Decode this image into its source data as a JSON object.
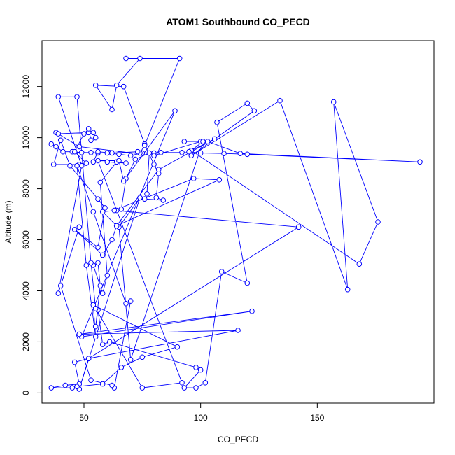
{
  "chart_data": {
    "type": "line",
    "title": "ATOM1 Southbound CO_PECD",
    "xlabel": "CO_PECD",
    "ylabel": "Altitude (m)",
    "xlim": [
      32,
      200
    ],
    "ylim": [
      -400,
      13800
    ],
    "x_ticks": [
      50,
      100,
      150
    ],
    "y_ticks": [
      0,
      2000,
      4000,
      6000,
      8000,
      10000,
      12000
    ],
    "grid": false,
    "legend": "none",
    "color": "#0000ff",
    "series": [
      {
        "points": [
          [
            36,
            9750
          ],
          [
            38,
            9650
          ],
          [
            41,
            9450
          ],
          [
            45,
            9450
          ],
          [
            49,
            9420
          ],
          [
            53,
            9420
          ],
          [
            56,
            9400
          ],
          [
            60,
            9400
          ],
          [
            65,
            9350
          ],
          [
            70,
            9300
          ],
          [
            75,
            9400
          ],
          [
            80,
            9400
          ],
          [
            83,
            9420
          ],
          [
            92,
            9420
          ],
          [
            100,
            9400
          ],
          [
            110,
            9380
          ],
          [
            120,
            9350
          ],
          [
            194,
            9050
          ],
          [
            117,
            9380
          ],
          [
            103,
            9850
          ],
          [
            93,
            9850
          ],
          [
            100,
            9850
          ],
          [
            80,
            9300
          ],
          [
            48,
            9650
          ],
          [
            38,
            10200
          ],
          [
            39,
            10150
          ],
          [
            52,
            10200
          ],
          [
            54,
            10200
          ],
          [
            55,
            10000
          ],
          [
            53,
            9900
          ],
          [
            52,
            10350
          ],
          [
            50,
            10150
          ],
          [
            46,
            9450
          ],
          [
            51,
            9000
          ],
          [
            48,
            8950
          ],
          [
            37,
            8950
          ],
          [
            40,
            9900
          ],
          [
            44,
            8900
          ],
          [
            56,
            7600
          ],
          [
            59,
            7250
          ],
          [
            56,
            5700
          ],
          [
            46,
            6400
          ],
          [
            58,
            5400
          ],
          [
            62,
            6000
          ],
          [
            64,
            6550
          ],
          [
            58,
            7100
          ],
          [
            64,
            7150
          ],
          [
            66,
            7200
          ],
          [
            68,
            8400
          ],
          [
            72,
            9150
          ],
          [
            78,
            9400
          ],
          [
            77,
            7800
          ],
          [
            76,
            7600
          ],
          [
            84,
            7550
          ],
          [
            81,
            7650
          ],
          [
            82,
            8600
          ],
          [
            80,
            8950
          ],
          [
            76,
            9750
          ],
          [
            67,
            12000
          ],
          [
            55,
            12050
          ],
          [
            62,
            11100
          ],
          [
            64,
            12050
          ],
          [
            74,
            13100
          ],
          [
            68,
            13100
          ],
          [
            91,
            13100
          ],
          [
            76,
            9700
          ],
          [
            74,
            9400
          ],
          [
            73,
            9450
          ],
          [
            62,
            9400
          ],
          [
            56,
            9450
          ],
          [
            54,
            9050
          ],
          [
            60,
            9050
          ],
          [
            68,
            9000
          ],
          [
            64,
            9050
          ],
          [
            57,
            8250
          ],
          [
            60,
            4600
          ],
          [
            58,
            3900
          ],
          [
            54,
            5000
          ],
          [
            56,
            5100
          ],
          [
            57,
            4200
          ],
          [
            55,
            2600
          ],
          [
            56,
            3250
          ],
          [
            58,
            1900
          ],
          [
            61,
            2000
          ],
          [
            98,
            1000
          ],
          [
            100,
            900
          ],
          [
            93,
            200
          ],
          [
            98,
            200
          ],
          [
            102,
            400
          ],
          [
            109,
            4750
          ],
          [
            120,
            4300
          ],
          [
            107,
            10600
          ],
          [
            120,
            11350
          ],
          [
            123,
            11050
          ],
          [
            96,
            9300
          ],
          [
            134,
            11450
          ],
          [
            163,
            4050
          ],
          [
            157,
            11400
          ],
          [
            176,
            6700
          ],
          [
            168,
            5050
          ],
          [
            96,
            9500
          ],
          [
            101,
            9850
          ],
          [
            70,
            1300
          ],
          [
            65,
            6500
          ],
          [
            74,
            7650
          ],
          [
            48,
            150
          ],
          [
            52,
            1350
          ],
          [
            46,
            1200
          ],
          [
            48,
            350
          ],
          [
            42,
            300
          ],
          [
            36,
            200
          ],
          [
            45,
            200
          ],
          [
            47,
            250
          ],
          [
            58,
            350
          ],
          [
            66,
            1000
          ],
          [
            75,
            1400
          ],
          [
            90,
            1800
          ],
          [
            54,
            3450
          ],
          [
            55,
            2200
          ],
          [
            51,
            5000
          ],
          [
            47,
            8900
          ],
          [
            54,
            7100
          ],
          [
            68,
            3500
          ],
          [
            70,
            3600
          ],
          [
            63,
            200
          ],
          [
            62,
            300
          ],
          [
            53,
            500
          ],
          [
            40,
            4200
          ],
          [
            48,
            6500
          ],
          [
            39,
            3900
          ],
          [
            49,
            8900
          ],
          [
            39,
            11600
          ],
          [
            47,
            11600
          ],
          [
            53,
            5100
          ],
          [
            55,
            3300
          ],
          [
            75,
            200
          ],
          [
            92,
            400
          ],
          [
            56,
            9100
          ],
          [
            65,
            9100
          ],
          [
            67,
            8300
          ],
          [
            89,
            11050
          ],
          [
            49,
            2200
          ],
          [
            122,
            3200
          ],
          [
            48,
            2300
          ],
          [
            116,
            2450
          ],
          [
            52,
            1350
          ],
          [
            142,
            6500
          ],
          [
            63,
            7150
          ],
          [
            97,
            8400
          ],
          [
            108,
            8350
          ],
          [
            64,
            6550
          ],
          [
            82,
            8750
          ],
          [
            106,
            9950
          ],
          [
            95,
            9450
          ]
        ]
      }
    ]
  }
}
